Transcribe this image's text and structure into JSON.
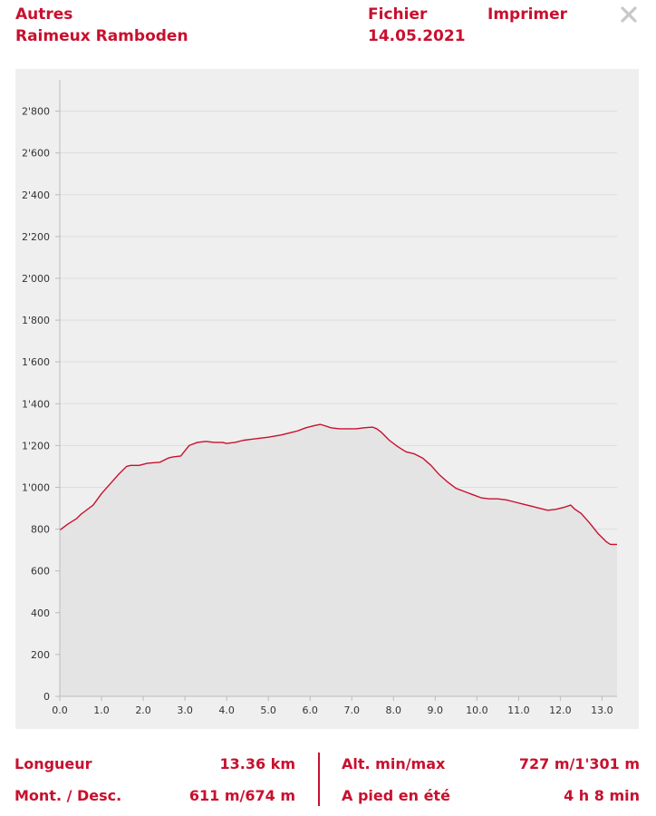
{
  "header": {
    "category": "Autres",
    "route_name": "Raimeux Ramboden",
    "file_label": "Fichier",
    "date": "14.05.2021",
    "print_label": "Imprimer"
  },
  "colors": {
    "accent": "#c8102e",
    "panel_bg": "#efefef",
    "area_fill": "#e4e4e4",
    "grid": "#dddddd"
  },
  "chart_data": {
    "type": "area",
    "title": "",
    "xlabel": "",
    "ylabel": "",
    "xlim": [
      0,
      13.36
    ],
    "ylim": [
      0,
      2950
    ],
    "x_ticks": [
      0,
      1,
      2,
      3,
      4,
      5,
      6,
      7,
      8,
      9,
      10,
      11,
      12,
      13
    ],
    "x_tick_labels": [
      "0.0",
      "1.0",
      "2.0",
      "3.0",
      "4.0",
      "5.0",
      "6.0",
      "7.0",
      "8.0",
      "9.0",
      "10.0",
      "11.0",
      "12.0",
      "13.0"
    ],
    "y_ticks": [
      0,
      200,
      400,
      600,
      800,
      1000,
      1200,
      1400,
      1600,
      1800,
      2000,
      2200,
      2400,
      2600,
      2800
    ],
    "y_tick_labels": [
      "0",
      "200",
      "400",
      "600",
      "800",
      "1'000",
      "1'200",
      "1'400",
      "1'600",
      "1'800",
      "2'000",
      "2'200",
      "2'400",
      "2'600",
      "2'800"
    ],
    "grid": true,
    "series": [
      {
        "x": [
          0,
          0.2,
          0.4,
          0.5,
          0.6,
          0.8,
          1.0,
          1.2,
          1.4,
          1.6,
          1.7,
          1.9,
          2.1,
          2.4,
          2.6,
          2.7,
          2.9,
          3.0,
          3.1,
          3.3,
          3.5,
          3.7,
          3.9,
          4.0,
          4.2,
          4.4,
          4.6,
          4.8,
          5.0,
          5.3,
          5.5,
          5.7,
          5.9,
          6.1,
          6.25,
          6.35,
          6.5,
          6.7,
          6.9,
          7.1,
          7.3,
          7.5,
          7.6,
          7.7,
          7.9,
          8.1,
          8.3,
          8.5,
          8.7,
          8.9,
          9.1,
          9.3,
          9.5,
          9.7,
          9.9,
          10.1,
          10.3,
          10.5,
          10.7,
          10.9,
          11.1,
          11.3,
          11.5,
          11.7,
          11.9,
          12.1,
          12.25,
          12.35,
          12.5,
          12.7,
          12.9,
          13.1,
          13.2,
          13.36
        ],
        "values": [
          795,
          825,
          850,
          870,
          885,
          915,
          970,
          1015,
          1060,
          1100,
          1105,
          1105,
          1115,
          1120,
          1140,
          1145,
          1150,
          1175,
          1200,
          1215,
          1220,
          1215,
          1215,
          1210,
          1215,
          1225,
          1230,
          1235,
          1240,
          1250,
          1260,
          1270,
          1285,
          1295,
          1301,
          1295,
          1285,
          1280,
          1280,
          1280,
          1285,
          1288,
          1280,
          1265,
          1225,
          1195,
          1170,
          1160,
          1140,
          1105,
          1060,
          1025,
          995,
          980,
          965,
          950,
          945,
          945,
          940,
          930,
          920,
          910,
          900,
          890,
          895,
          905,
          915,
          895,
          875,
          830,
          780,
          740,
          727,
          727
        ]
      }
    ]
  },
  "stats": {
    "length_label": "Longueur",
    "length_value": "13.36 km",
    "ascent_label": "Mont. / Desc.",
    "ascent_value": "611 m/674 m",
    "alt_label": "Alt. min/max",
    "alt_value": "727 m/1'301 m",
    "hike_label": "A pied en été",
    "hike_value": "4 h 8 min"
  }
}
